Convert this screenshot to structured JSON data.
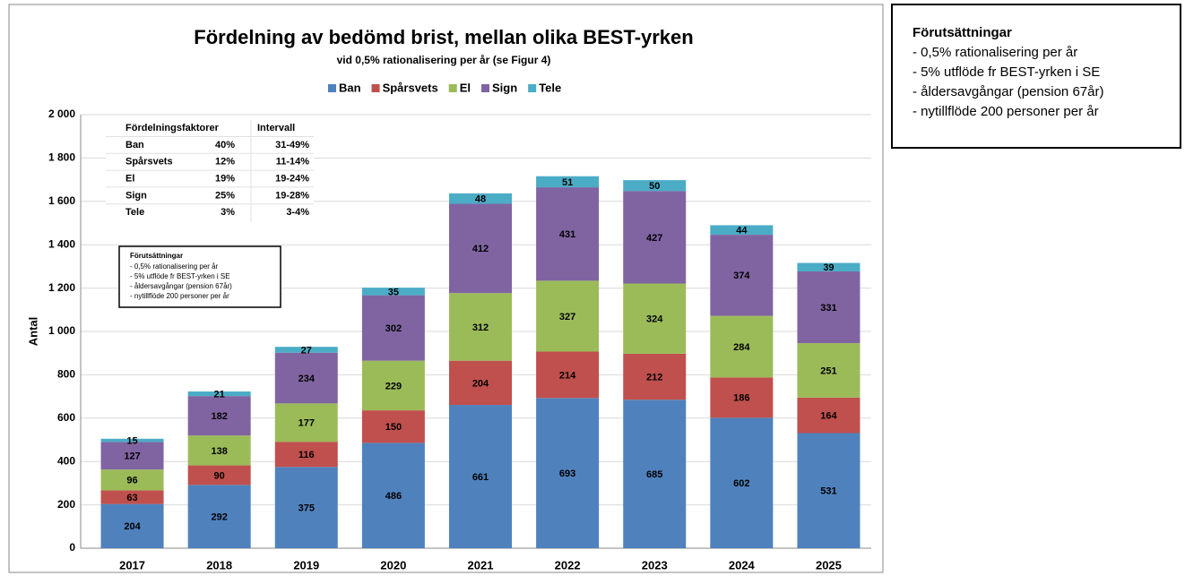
{
  "chart_data": {
    "type": "bar",
    "stacked": true,
    "title": "Fördelning av bedömd brist, mellan olika BEST-yrken",
    "subtitle": "vid 0,5% rationalisering per år (se Figur 4)",
    "y_label": "Antal",
    "categories": [
      "2017",
      "2018",
      "2019",
      "2020",
      "2021",
      "2022",
      "2023",
      "2024",
      "2025"
    ],
    "series": [
      {
        "name": "Ban",
        "color": "#4f81bd",
        "values": [
          204,
          292,
          375,
          486,
          661,
          693,
          685,
          602,
          531
        ]
      },
      {
        "name": "Spårsvets",
        "color": "#c0504d",
        "values": [
          63,
          90,
          116,
          150,
          204,
          214,
          212,
          186,
          164
        ]
      },
      {
        "name": "El",
        "color": "#9bbb59",
        "values": [
          96,
          138,
          177,
          229,
          312,
          327,
          324,
          284,
          251
        ]
      },
      {
        "name": "Sign",
        "color": "#8064a2",
        "values": [
          127,
          182,
          234,
          302,
          412,
          431,
          427,
          374,
          331
        ]
      },
      {
        "name": "Tele",
        "color": "#4bacc6",
        "values": [
          15,
          21,
          27,
          35,
          48,
          51,
          50,
          44,
          39
        ]
      }
    ],
    "ylim": [
      0,
      2000
    ],
    "yticks": [
      0,
      200,
      400,
      600,
      800,
      {
        "value": 1000,
        "label": "1 000"
      },
      {
        "value": 1200,
        "label": "1 200"
      },
      {
        "value": 1400,
        "label": "1 400"
      },
      {
        "value": 1600,
        "label": "1 600"
      },
      {
        "value": 1800,
        "label": "1 800"
      },
      {
        "value": 2000,
        "label": "2 000"
      }
    ],
    "grid": true,
    "legend": "top"
  },
  "factors": {
    "headers": [
      "Fördelningsfaktorer",
      "Intervall"
    ],
    "rows": [
      [
        "Ban",
        "40%",
        "31-49%"
      ],
      [
        "Spårsvets",
        "12%",
        "11-14%"
      ],
      [
        "El",
        "19%",
        "19-24%"
      ],
      [
        "Sign",
        "25%",
        "19-28%"
      ],
      [
        "Tele",
        "3%",
        "3-4%"
      ]
    ]
  },
  "assumptions": {
    "title": "Förutsättningar",
    "items": [
      "- 0,5% rationalisering per år",
      "- 5% utflöde fr BEST-yrken i SE",
      "- åldersavgångar (pension 67år)",
      "- nytillflöde 200 personer per år"
    ]
  }
}
